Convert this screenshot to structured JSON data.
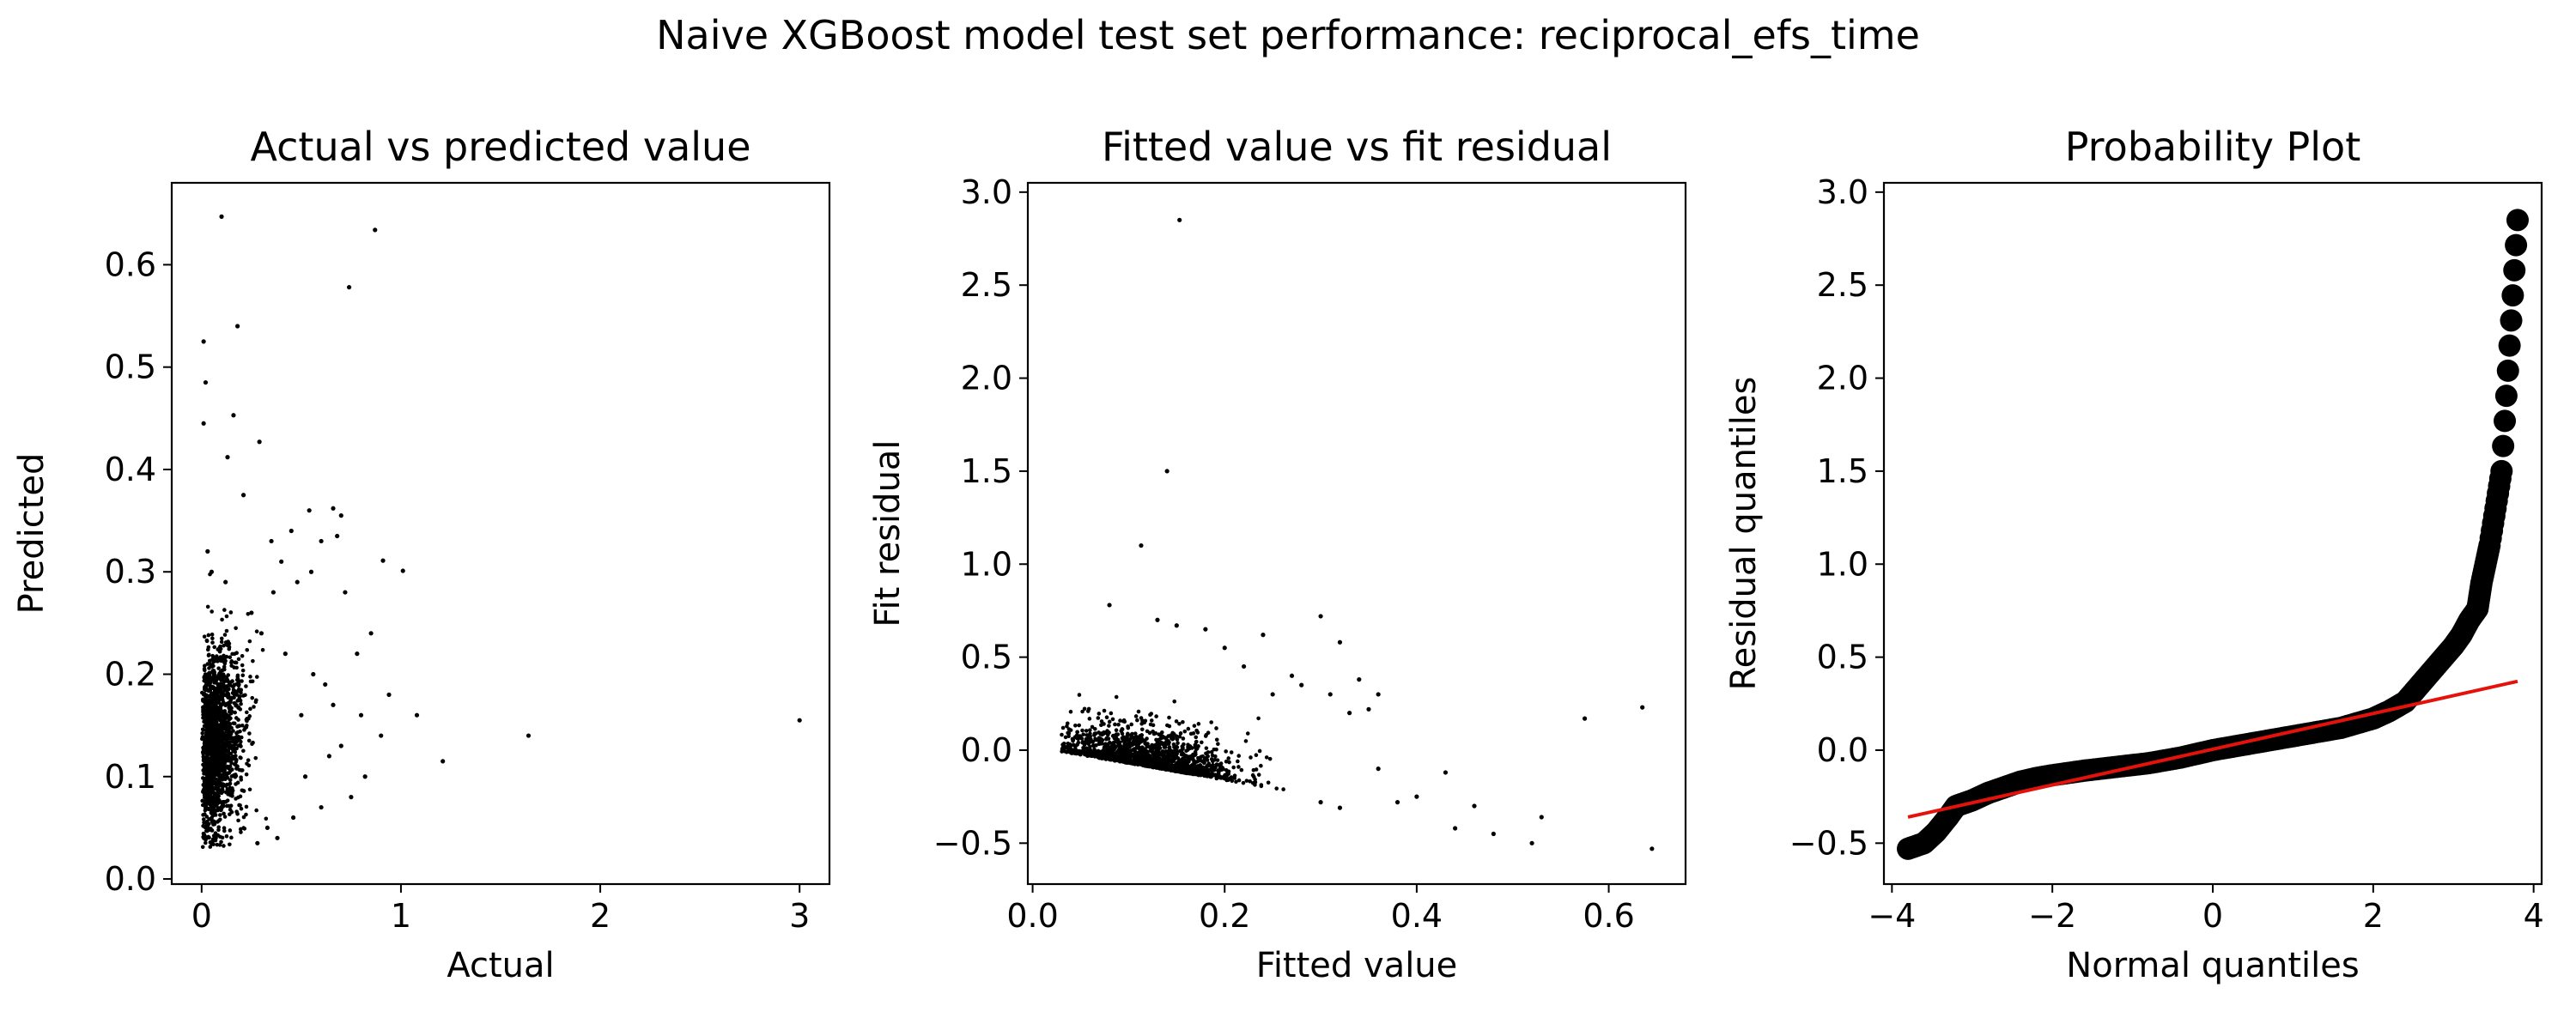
{
  "figure": {
    "suptitle": "Naive XGBoost model test set performance: reciprocal_efs_time"
  },
  "chart_data": [
    {
      "type": "scatter",
      "title": "Actual vs predicted value",
      "xlabel": "Actual",
      "ylabel": "Predicted",
      "xlim": [
        -0.15,
        3.15
      ],
      "ylim": [
        -0.005,
        0.68
      ],
      "xticks": [
        0,
        1,
        2,
        3
      ],
      "xtick_labels": [
        "0",
        "1",
        "2",
        "3"
      ],
      "yticks": [
        0.0,
        0.1,
        0.2,
        0.3,
        0.4,
        0.5,
        0.6
      ],
      "ytick_labels": [
        "0.0",
        "0.1",
        "0.2",
        "0.3",
        "0.4",
        "0.5",
        "0.6"
      ],
      "marker_color": "#000000",
      "points": [
        [
          0.1,
          0.647
        ],
        [
          0.87,
          0.634
        ],
        [
          0.74,
          0.578
        ],
        [
          0.18,
          0.54
        ],
        [
          0.01,
          0.525
        ],
        [
          0.02,
          0.485
        ],
        [
          0.16,
          0.453
        ],
        [
          0.01,
          0.445
        ],
        [
          0.29,
          0.427
        ],
        [
          0.13,
          0.412
        ],
        [
          0.21,
          0.375
        ],
        [
          0.66,
          0.362
        ],
        [
          0.03,
          0.32
        ],
        [
          0.7,
          0.355
        ],
        [
          0.68,
          0.335
        ],
        [
          0.91,
          0.311
        ],
        [
          1.01,
          0.301
        ],
        [
          0.54,
          0.36
        ],
        [
          0.6,
          0.33
        ],
        [
          0.05,
          0.3
        ],
        [
          0.72,
          0.28
        ],
        [
          0.55,
          0.3
        ],
        [
          0.48,
          0.29
        ],
        [
          0.35,
          0.33
        ],
        [
          0.4,
          0.31
        ],
        [
          0.45,
          0.34
        ],
        [
          0.85,
          0.24
        ],
        [
          0.78,
          0.22
        ],
        [
          0.62,
          0.19
        ],
        [
          0.8,
          0.16
        ],
        [
          0.94,
          0.18
        ],
        [
          1.08,
          0.16
        ],
        [
          0.9,
          0.14
        ],
        [
          0.7,
          0.13
        ],
        [
          0.82,
          0.1
        ],
        [
          0.75,
          0.08
        ],
        [
          0.64,
          0.12
        ],
        [
          0.52,
          0.1
        ],
        [
          0.46,
          0.06
        ],
        [
          0.38,
          0.04
        ],
        [
          0.33,
          0.05
        ],
        [
          0.28,
          0.035
        ],
        [
          0.6,
          0.07
        ],
        [
          1.21,
          0.115
        ],
        [
          1.64,
          0.14
        ],
        [
          3.0,
          0.155
        ],
        [
          0.25,
          0.26
        ],
        [
          0.3,
          0.24
        ],
        [
          0.42,
          0.22
        ],
        [
          0.56,
          0.2
        ],
        [
          0.5,
          0.16
        ],
        [
          0.66,
          0.17
        ],
        [
          0.36,
          0.28
        ],
        [
          0.12,
          0.29
        ]
      ],
      "dense_cloud": {
        "count": 1600,
        "x_range": [
          0.0,
          0.35
        ],
        "y_center": 0.12,
        "y_spread": 0.045
      }
    },
    {
      "type": "scatter",
      "title": "Fitted value vs fit residual",
      "xlabel": "Fitted value",
      "ylabel": "Fit residual",
      "xlim": [
        -0.005,
        0.68
      ],
      "ylim": [
        -0.72,
        3.05
      ],
      "xticks": [
        0.0,
        0.2,
        0.4,
        0.6
      ],
      "xtick_labels": [
        "0.0",
        "0.2",
        "0.4",
        "0.6"
      ],
      "yticks": [
        -0.5,
        0.0,
        0.5,
        1.0,
        1.5,
        2.0,
        2.5,
        3.0
      ],
      "ytick_labels": [
        "−0.5",
        "0.0",
        "0.5",
        "1.0",
        "1.5",
        "2.0",
        "2.5",
        "3.0"
      ],
      "marker_color": "#000000",
      "points": [
        [
          0.153,
          2.85
        ],
        [
          0.14,
          1.5
        ],
        [
          0.113,
          1.1
        ],
        [
          0.08,
          0.78
        ],
        [
          0.13,
          0.7
        ],
        [
          0.3,
          0.72
        ],
        [
          0.32,
          0.58
        ],
        [
          0.24,
          0.62
        ],
        [
          0.18,
          0.65
        ],
        [
          0.15,
          0.67
        ],
        [
          0.34,
          0.38
        ],
        [
          0.36,
          0.3
        ],
        [
          0.35,
          0.22
        ],
        [
          0.33,
          0.2
        ],
        [
          0.28,
          0.35
        ],
        [
          0.31,
          0.3
        ],
        [
          0.25,
          0.3
        ],
        [
          0.27,
          0.4
        ],
        [
          0.22,
          0.45
        ],
        [
          0.2,
          0.55
        ],
        [
          0.575,
          0.17
        ],
        [
          0.635,
          0.23
        ],
        [
          0.43,
          -0.12
        ],
        [
          0.4,
          -0.25
        ],
        [
          0.38,
          -0.28
        ],
        [
          0.46,
          -0.3
        ],
        [
          0.48,
          -0.45
        ],
        [
          0.53,
          -0.36
        ],
        [
          0.52,
          -0.5
        ],
        [
          0.645,
          -0.53
        ],
        [
          0.44,
          -0.42
        ],
        [
          0.36,
          -0.1
        ],
        [
          0.3,
          -0.28
        ],
        [
          0.32,
          -0.31
        ]
      ],
      "dense_cloud": {
        "count": 1600,
        "x_range": [
          0.03,
          0.32
        ],
        "note_floor": "residual >= -fitted"
      }
    },
    {
      "type": "scatter",
      "title": "Probability Plot",
      "xlabel": "Normal quantiles",
      "ylabel": "Residual quantiles",
      "xlim": [
        -4.1,
        4.1
      ],
      "ylim": [
        -0.72,
        3.05
      ],
      "xticks": [
        -4,
        -2,
        0,
        2,
        4
      ],
      "xtick_labels": [
        "−4",
        "−2",
        "0",
        "2",
        "4"
      ],
      "yticks": [
        -0.5,
        0.0,
        0.5,
        1.0,
        1.5,
        2.0,
        2.5,
        3.0
      ],
      "ytick_labels": [
        "−0.5",
        "0.0",
        "0.5",
        "1.0",
        "1.5",
        "2.0",
        "2.5",
        "3.0"
      ],
      "marker_color": "#000000",
      "fit_line": {
        "x": [
          -3.8,
          3.8
        ],
        "y": [
          -0.36,
          0.37
        ],
        "color": "#e3120b"
      },
      "points": [
        [
          -3.8,
          -0.53
        ],
        [
          -3.6,
          -0.5
        ],
        [
          -3.45,
          -0.44
        ],
        [
          -3.3,
          -0.36
        ],
        [
          -3.2,
          -0.3
        ],
        [
          -3.0,
          -0.27
        ],
        [
          -2.8,
          -0.23
        ],
        [
          -2.6,
          -0.2
        ],
        [
          -2.4,
          -0.17
        ],
        [
          -2.2,
          -0.15
        ],
        [
          -2.0,
          -0.135
        ],
        [
          -1.6,
          -0.11
        ],
        [
          -1.2,
          -0.09
        ],
        [
          -0.8,
          -0.07
        ],
        [
          -0.4,
          -0.04
        ],
        [
          0.0,
          0.0
        ],
        [
          0.4,
          0.03
        ],
        [
          0.8,
          0.06
        ],
        [
          1.2,
          0.09
        ],
        [
          1.6,
          0.12
        ],
        [
          2.0,
          0.17
        ],
        [
          2.2,
          0.21
        ],
        [
          2.4,
          0.26
        ],
        [
          2.6,
          0.36
        ],
        [
          2.8,
          0.46
        ],
        [
          3.0,
          0.56
        ],
        [
          3.1,
          0.62
        ],
        [
          3.2,
          0.7
        ],
        [
          3.3,
          0.76
        ],
        [
          3.35,
          0.9
        ],
        [
          3.45,
          1.1
        ],
        [
          3.6,
          1.5
        ],
        [
          3.8,
          2.85
        ]
      ]
    }
  ]
}
